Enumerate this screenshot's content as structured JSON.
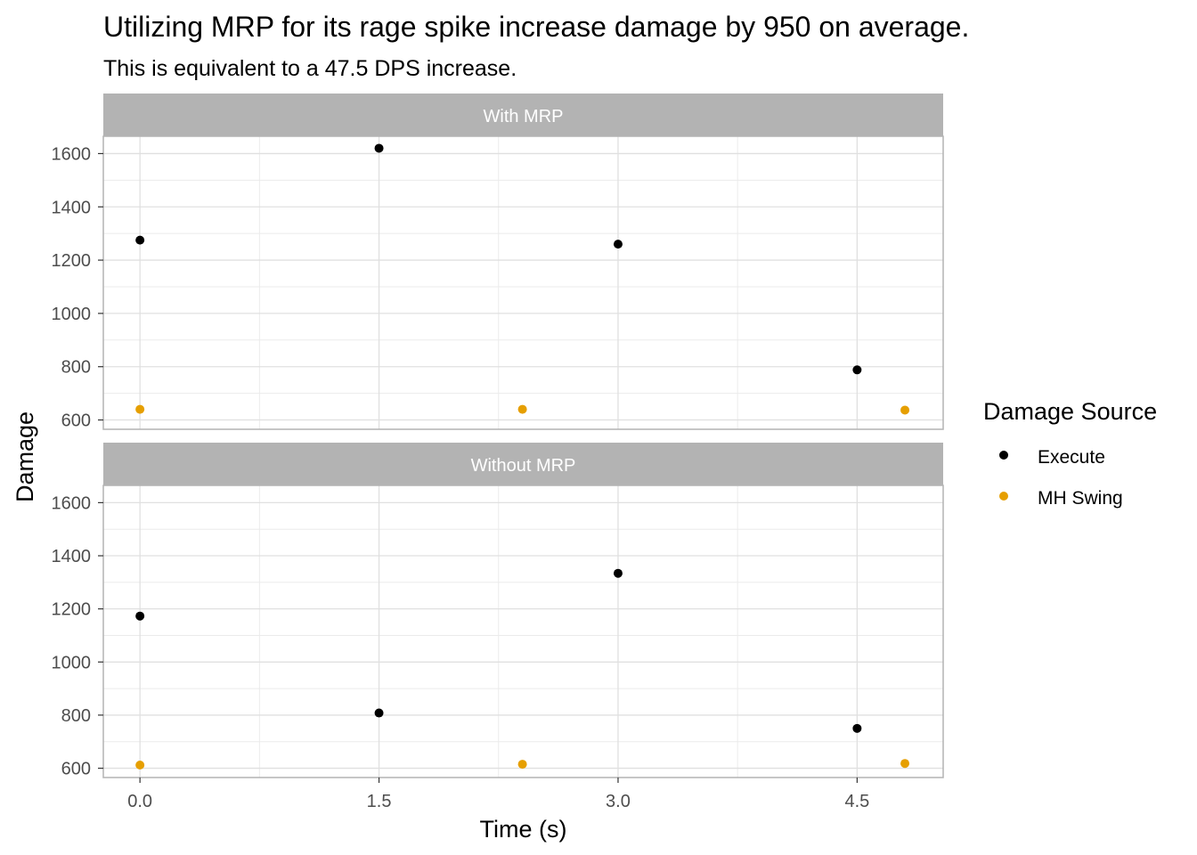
{
  "chart_data": {
    "type": "scatter",
    "title": "Utilizing MRP for its rage spike increase damage by 950 on average.",
    "subtitle": "This is equivalent to a 47.5 DPS increase.",
    "xlabel": "Time (s)",
    "ylabel": "Damage",
    "xlim": [
      -0.23,
      5.04
    ],
    "ylim": [
      565,
      1665
    ],
    "x_ticks": [
      0.0,
      1.5,
      3.0,
      4.5
    ],
    "x_tick_labels": [
      "0.0",
      "1.5",
      "3.0",
      "4.5"
    ],
    "y_ticks": [
      600,
      800,
      1000,
      1200,
      1400,
      1600
    ],
    "y_tick_labels": [
      "600",
      "800",
      "1000",
      "1200",
      "1400",
      "1600"
    ],
    "grid": true,
    "legend": {
      "title": "Damage Source",
      "position": "right",
      "entries": [
        "Execute",
        "MH Swing"
      ]
    },
    "colors": {
      "Execute": "#000000",
      "MH Swing": "#E69F00",
      "strip_background": "#b3b3b3",
      "grid": "#e0e0e0",
      "panel_border": "#b3b3b3"
    },
    "panels": [
      {
        "label": "With MRP",
        "series": [
          {
            "name": "Execute",
            "points": [
              {
                "x": 0.0,
                "y": 1275
              },
              {
                "x": 1.5,
                "y": 1620
              },
              {
                "x": 3.0,
                "y": 1260
              },
              {
                "x": 4.5,
                "y": 788
              }
            ]
          },
          {
            "name": "MH Swing",
            "points": [
              {
                "x": 0.0,
                "y": 640
              },
              {
                "x": 2.4,
                "y": 640
              },
              {
                "x": 4.8,
                "y": 637
              }
            ]
          }
        ]
      },
      {
        "label": "Without MRP",
        "series": [
          {
            "name": "Execute",
            "points": [
              {
                "x": 0.0,
                "y": 1173
              },
              {
                "x": 1.5,
                "y": 808
              },
              {
                "x": 3.0,
                "y": 1334
              },
              {
                "x": 4.5,
                "y": 750
              }
            ]
          },
          {
            "name": "MH Swing",
            "points": [
              {
                "x": 0.0,
                "y": 612
              },
              {
                "x": 2.4,
                "y": 615
              },
              {
                "x": 4.8,
                "y": 618
              }
            ]
          }
        ]
      }
    ]
  }
}
